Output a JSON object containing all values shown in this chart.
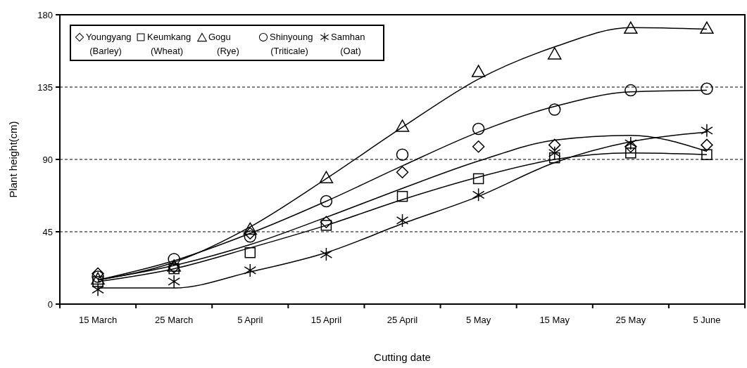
{
  "chart_data": {
    "type": "scatter",
    "xlabel": "Cutting date",
    "ylabel": "Plant height(cm)",
    "categories": [
      "15 March",
      "25 March",
      "5 April",
      "15 April",
      "25 April",
      "5 May",
      "15 May",
      "25 May",
      "5 June"
    ],
    "ylim": [
      0,
      180
    ],
    "yticks": [
      0,
      45,
      90,
      135,
      180
    ],
    "grid": "y",
    "legend": "top left",
    "series": [
      {
        "name": "Youngyang (Barley)",
        "color": "#000000",
        "marker": "diamond",
        "values": [
          19,
          23,
          44,
          51,
          82,
          98,
          99,
          98,
          99
        ]
      },
      {
        "name": "Keumkang (Wheat)",
        "color": "#000000",
        "marker": "square",
        "values": [
          14,
          22,
          32,
          49,
          67,
          78,
          91,
          94,
          93
        ]
      },
      {
        "name": "Gogu (Rye)",
        "color": "#000000",
        "marker": "triangle",
        "values": [
          16,
          24,
          47,
          79,
          111,
          145,
          156,
          172,
          172
        ]
      },
      {
        "name": "Shinyoung (Triticale)",
        "color": "#000000",
        "marker": "circle",
        "values": [
          17,
          28,
          42,
          64,
          93,
          109,
          121,
          133,
          134
        ]
      },
      {
        "name": "Samhan (Oat)",
        "color": "#000000",
        "marker": "cross",
        "values": [
          9,
          14,
          21,
          31,
          52,
          68,
          94,
          100,
          108
        ]
      },
      {
        "type": "line",
        "color": "#000000",
        "marker": "none",
        "line_style": "solid",
        "x": [
          "15 March",
          "25 March",
          "5 April",
          "15 April",
          "25 April",
          "5 May",
          "15 May",
          "25 May",
          "5 June"
        ],
        "values": [
          15,
          24,
          37,
          54,
          72,
          89,
          102,
          105,
          95
        ]
      },
      {
        "type": "line",
        "color": "#000000",
        "marker": "none",
        "line_style": "solid",
        "x": [
          "15 March",
          "25 March",
          "5 April",
          "15 April",
          "25 April",
          "5 May",
          "15 May",
          "25 May",
          "5 June"
        ],
        "values": [
          14,
          22,
          35,
          49,
          65,
          79,
          90,
          94,
          93
        ]
      },
      {
        "type": "line",
        "color": "#000000",
        "marker": "none",
        "line_style": "solid",
        "x": [
          "15 March",
          "25 March",
          "5 April",
          "15 April",
          "25 April",
          "5 May",
          "15 May",
          "25 May",
          "5 June"
        ],
        "values": [
          15,
          26,
          48,
          78,
          110,
          140,
          160,
          172,
          171
        ]
      },
      {
        "type": "line",
        "color": "#000000",
        "marker": "none",
        "line_style": "solid",
        "x": [
          "15 March",
          "25 March",
          "5 April",
          "15 April",
          "25 April",
          "5 May",
          "15 May",
          "25 May",
          "5 June"
        ],
        "values": [
          15,
          27,
          44,
          64,
          86,
          107,
          123,
          132,
          133
        ]
      },
      {
        "type": "line",
        "color": "#000000",
        "marker": "none",
        "line_style": "solid",
        "x": [
          "15 March",
          "25 March",
          "5 April",
          "15 April",
          "25 April",
          "5 May",
          "15 May",
          "25 May",
          "5 June"
        ],
        "values": [
          10,
          10,
          20,
          32,
          50,
          67,
          88,
          101,
          107
        ]
      }
    ]
  }
}
